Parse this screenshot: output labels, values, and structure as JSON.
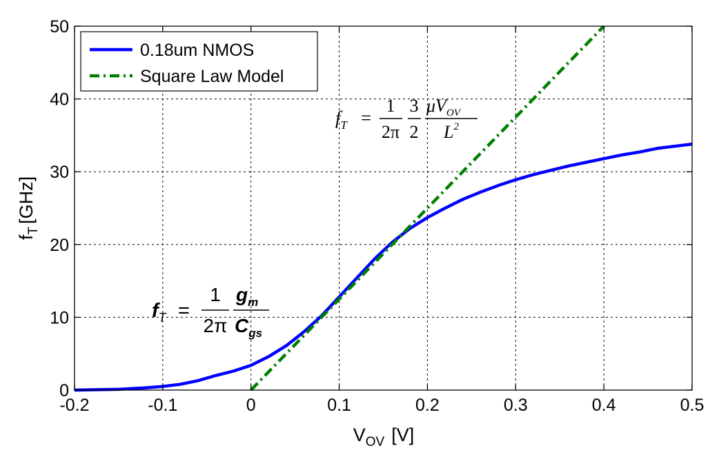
{
  "chart_data": {
    "type": "line",
    "xlabel": "V",
    "xlabel_sub": "OV",
    "xlabel_unit": "[V]",
    "ylabel": "f",
    "ylabel_sub": "T",
    "ylabel_unit": "[GHz]",
    "xlim": [
      -0.2,
      0.5
    ],
    "ylim": [
      0,
      50
    ],
    "xticks": [
      -0.2,
      -0.1,
      0,
      0.1,
      0.2,
      0.3,
      0.4,
      0.5
    ],
    "xtick_labels": [
      "-0.2",
      "-0.1",
      "0",
      "0.1",
      "0.2",
      "0.3",
      "0.4",
      "0.5"
    ],
    "yticks": [
      0,
      10,
      20,
      30,
      40,
      50
    ],
    "ytick_labels": [
      "0",
      "10",
      "20",
      "30",
      "40",
      "50"
    ],
    "grid": true,
    "legend_position": "top-left",
    "series": [
      {
        "name": "0.18um NMOS",
        "color": "#0000ff",
        "style": "solid",
        "x": [
          -0.2,
          -0.15,
          -0.12,
          -0.1,
          -0.08,
          -0.06,
          -0.04,
          -0.02,
          0.0,
          0.02,
          0.04,
          0.06,
          0.08,
          0.1,
          0.12,
          0.14,
          0.16,
          0.18,
          0.2,
          0.22,
          0.24,
          0.26,
          0.28,
          0.3,
          0.32,
          0.34,
          0.36,
          0.38,
          0.4,
          0.42,
          0.44,
          0.46,
          0.48,
          0.5
        ],
        "y": [
          0.0,
          0.1,
          0.3,
          0.5,
          0.8,
          1.3,
          2.0,
          2.6,
          3.4,
          4.6,
          6.1,
          8.0,
          10.2,
          12.8,
          15.4,
          18.0,
          20.3,
          22.2,
          23.7,
          25.0,
          26.2,
          27.2,
          28.1,
          28.9,
          29.6,
          30.2,
          30.8,
          31.3,
          31.8,
          32.3,
          32.7,
          33.2,
          33.5,
          33.8
        ]
      },
      {
        "name": "Square Law Model",
        "color": "#008000",
        "style": "dashdot",
        "x": [
          0.0,
          0.4
        ],
        "y": [
          0.0,
          50.0
        ]
      }
    ],
    "annotations": {
      "eq_top": {
        "lhs": "f",
        "lhs_sub": "T",
        "eq": "=",
        "frac1_num": "1",
        "frac1_den": "2π",
        "frac2_num": "3",
        "frac2_den": "2",
        "frac3_num": "μV",
        "frac3_num_sub": "OV",
        "frac3_den": "L",
        "frac3_den_sup": "2"
      },
      "eq_bottom": {
        "lhs": "f",
        "lhs_sub": "T",
        "eq": "=",
        "frac1_num": "1",
        "frac1_den": "2π",
        "frac2_num": "g",
        "frac2_num_sub": "m",
        "frac2_den": "C",
        "frac2_den_sub": "gs"
      }
    }
  }
}
